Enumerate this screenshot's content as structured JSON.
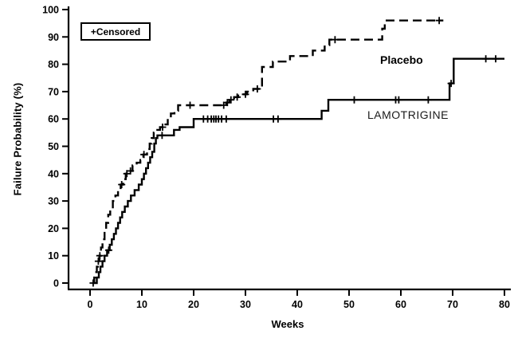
{
  "chart_data": {
    "type": "line",
    "variant": "kaplan-meier-step-plot",
    "title": "",
    "xlabel": "Weeks",
    "ylabel": "Failure Probability (%)",
    "xlim": [
      0,
      80
    ],
    "ylim": [
      0,
      100
    ],
    "xticks": [
      0,
      10,
      20,
      30,
      40,
      50,
      60,
      70,
      80
    ],
    "yticks": [
      0,
      10,
      20,
      30,
      40,
      50,
      60,
      70,
      80,
      90,
      100
    ],
    "grid": false,
    "legend": {
      "label": "+Censored",
      "position": "top-left"
    },
    "colors": {
      "line": "#000000",
      "background": "#ffffff"
    },
    "series": [
      {
        "name": "Placebo",
        "line_style": "dashed",
        "steps": [
          [
            0.5,
            0
          ],
          [
            0.8,
            2
          ],
          [
            1.0,
            4
          ],
          [
            1.3,
            6
          ],
          [
            1.5,
            8
          ],
          [
            1.8,
            10
          ],
          [
            2.1,
            13
          ],
          [
            2.4,
            16
          ],
          [
            2.8,
            19
          ],
          [
            3.1,
            22
          ],
          [
            3.5,
            25
          ],
          [
            3.9,
            27
          ],
          [
            4.4,
            30
          ],
          [
            4.9,
            32
          ],
          [
            5.4,
            34
          ],
          [
            5.9,
            36
          ],
          [
            6.4,
            38
          ],
          [
            6.9,
            40
          ],
          [
            7.5,
            41
          ],
          [
            8.2,
            43
          ],
          [
            9.0,
            44
          ],
          [
            9.7,
            45
          ],
          [
            10.3,
            47
          ],
          [
            11.0,
            49
          ],
          [
            11.5,
            51
          ],
          [
            11.9,
            53
          ],
          [
            12.3,
            55
          ],
          [
            12.7,
            56
          ],
          [
            13.5,
            57
          ],
          [
            14.2,
            58
          ],
          [
            15.0,
            60
          ],
          [
            15.6,
            62
          ],
          [
            16.3,
            63
          ],
          [
            17.0,
            65
          ],
          [
            26.3,
            66
          ],
          [
            26.9,
            67
          ],
          [
            27.8,
            68
          ],
          [
            28.6,
            69
          ],
          [
            30.3,
            70
          ],
          [
            31.5,
            71
          ],
          [
            33.2,
            79
          ],
          [
            35.3,
            81
          ],
          [
            38.6,
            83
          ],
          [
            43.0,
            85
          ],
          [
            45.3,
            87
          ],
          [
            46.2,
            89
          ],
          [
            56.4,
            93
          ],
          [
            56.9,
            96
          ]
        ],
        "end_week": 68.2,
        "censored": [
          [
            0.6,
            0
          ],
          [
            1.6,
            8
          ],
          [
            1.9,
            10
          ],
          [
            6.1,
            36
          ],
          [
            7.1,
            40
          ],
          [
            7.8,
            41
          ],
          [
            10.4,
            47
          ],
          [
            14.0,
            57
          ],
          [
            19.3,
            65
          ],
          [
            25.8,
            65
          ],
          [
            26.5,
            66
          ],
          [
            27.2,
            67
          ],
          [
            28.4,
            68
          ],
          [
            30.0,
            69
          ],
          [
            32.3,
            71
          ],
          [
            47.3,
            89
          ],
          [
            67.4,
            96
          ]
        ]
      },
      {
        "name": "LAMOTRIGINE",
        "line_style": "solid",
        "steps": [
          [
            1.0,
            0
          ],
          [
            1.3,
            2
          ],
          [
            1.7,
            4
          ],
          [
            2.0,
            6
          ],
          [
            2.4,
            8
          ],
          [
            2.8,
            10
          ],
          [
            3.3,
            12
          ],
          [
            3.8,
            14
          ],
          [
            4.2,
            16
          ],
          [
            4.6,
            18
          ],
          [
            5.0,
            20
          ],
          [
            5.4,
            22
          ],
          [
            5.8,
            24
          ],
          [
            6.2,
            26
          ],
          [
            6.7,
            28
          ],
          [
            7.3,
            30
          ],
          [
            7.9,
            32
          ],
          [
            8.6,
            34
          ],
          [
            9.4,
            36
          ],
          [
            10.0,
            38
          ],
          [
            10.4,
            40
          ],
          [
            10.8,
            42
          ],
          [
            11.2,
            44
          ],
          [
            11.6,
            46
          ],
          [
            12.0,
            48
          ],
          [
            12.4,
            51
          ],
          [
            12.7,
            53
          ],
          [
            13.0,
            54
          ],
          [
            16.2,
            56
          ],
          [
            17.3,
            57
          ],
          [
            20.0,
            60
          ],
          [
            44.7,
            63
          ],
          [
            46.0,
            67
          ],
          [
            69.4,
            73
          ],
          [
            70.2,
            82
          ]
        ],
        "end_week": 80.0,
        "censored": [
          [
            3.6,
            12
          ],
          [
            13.9,
            54
          ],
          [
            21.9,
            60
          ],
          [
            22.7,
            60
          ],
          [
            23.4,
            60
          ],
          [
            23.9,
            60
          ],
          [
            24.3,
            60
          ],
          [
            24.8,
            60
          ],
          [
            25.4,
            60
          ],
          [
            26.3,
            60
          ],
          [
            35.4,
            60
          ],
          [
            36.3,
            60
          ],
          [
            51.0,
            67
          ],
          [
            59.0,
            67
          ],
          [
            59.6,
            67
          ],
          [
            65.3,
            67
          ],
          [
            69.7,
            73
          ],
          [
            76.4,
            82
          ],
          [
            78.3,
            82
          ]
        ]
      }
    ]
  }
}
